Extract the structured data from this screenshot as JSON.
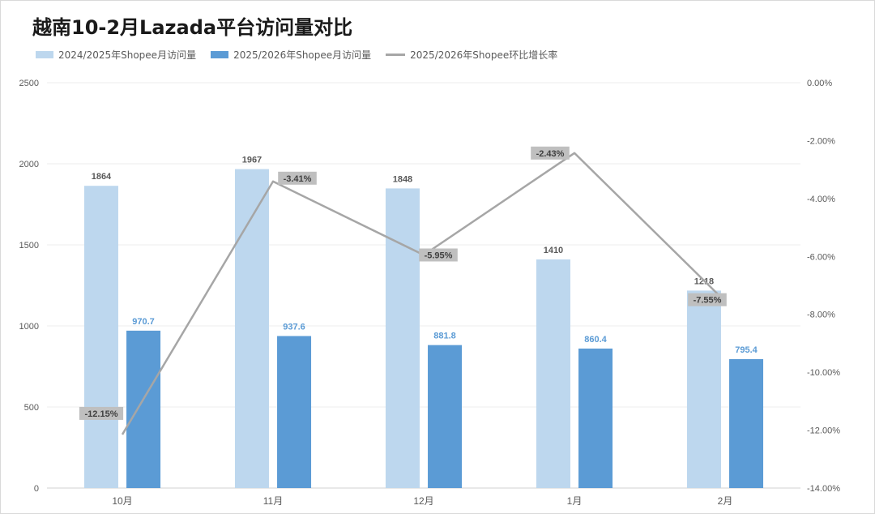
{
  "chart_data": {
    "type": "bar",
    "title": "越南10-2月Lazada平台访问量对比",
    "categories": [
      "10月",
      "11月",
      "12月",
      "1月",
      "2月"
    ],
    "series": [
      {
        "name": "2024/2025年Shopee月访问量",
        "type": "bar",
        "axis": "left",
        "values": [
          1864,
          1967,
          1848,
          1410,
          1218
        ],
        "labels": [
          "1864",
          "1967",
          "1848",
          "1410",
          "1218"
        ],
        "color": "#bdd7ee"
      },
      {
        "name": "2025/2026年Shopee月访问量",
        "type": "bar",
        "axis": "left",
        "values": [
          970.7,
          937.6,
          881.8,
          860.4,
          795.4
        ],
        "labels": [
          "970.7",
          "937.6",
          "881.8",
          "860.4",
          "795.4"
        ],
        "color": "#5b9bd5"
      },
      {
        "name": "2025/2026年Shopee环比增长率",
        "type": "line",
        "axis": "right",
        "values": [
          -12.15,
          -3.41,
          -5.95,
          -2.43,
          -7.55
        ],
        "labels": [
          "-12.15%",
          "-3.41%",
          "-5.95%",
          "-2.43%",
          "-7.55%"
        ],
        "color": "#a6a6a6"
      }
    ],
    "y_left": {
      "min": 0,
      "max": 2500,
      "ticks": [
        "0",
        "500",
        "1000",
        "1500",
        "2000",
        "2500"
      ]
    },
    "y_right": {
      "min": -14,
      "max": 0,
      "ticks": [
        "-14.00%",
        "-12.00%",
        "-10.00%",
        "-8.00%",
        "-6.00%",
        "-4.00%",
        "-2.00%",
        "0.00%"
      ]
    },
    "grid": true,
    "legend_position": "top-left"
  }
}
